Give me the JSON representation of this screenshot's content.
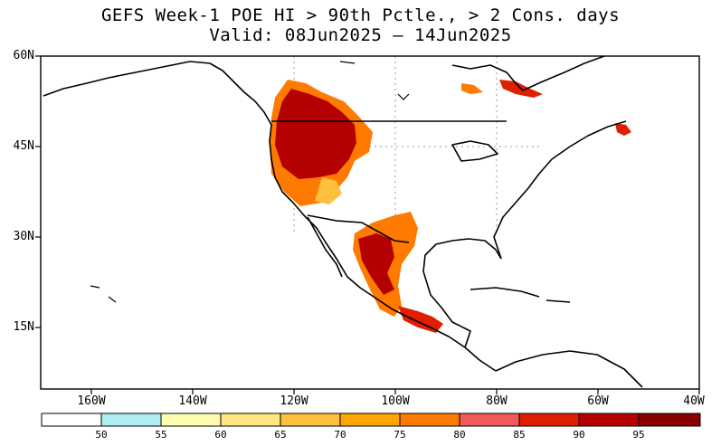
{
  "title": {
    "line1": "GEFS Week-1 POE HI > 90th Pctle., > 2 Cons. days",
    "line2": "Valid: 08Jun2025 – 14Jun2025"
  },
  "axes": {
    "lat_labels": [
      "60N",
      "45N",
      "30N",
      "15N"
    ],
    "lon_labels": [
      "160W",
      "140W",
      "120W",
      "100W",
      "80W",
      "60W",
      "40W"
    ]
  },
  "colorbar": {
    "labels": [
      "50",
      "55",
      "60",
      "65",
      "70",
      "75",
      "80",
      "85",
      "90",
      "95"
    ],
    "colors": [
      "#ffffff",
      "#aeeef2",
      "#fffcb0",
      "#ffe680",
      "#ffc040",
      "#ffa500",
      "#ff7a00",
      "#f05a5a",
      "#e01e00",
      "#b40000",
      "#8a0000"
    ]
  },
  "map": {
    "lon_range": [
      -170,
      -40
    ],
    "lat_range": [
      5,
      60
    ],
    "heat_colors": {
      "light": "#ffc040",
      "orange": "#ff7a00",
      "red": "#e01e00",
      "dark": "#b40000"
    }
  }
}
